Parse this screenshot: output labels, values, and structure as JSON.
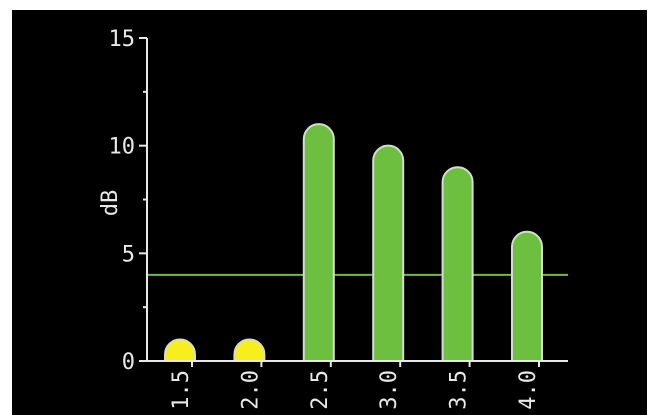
{
  "chart_data": {
    "type": "bar",
    "title": "",
    "xlabel": "",
    "ylabel": "dB",
    "categories": [
      "1.5",
      "2.0",
      "2.5",
      "3.0",
      "3.5",
      "4.0"
    ],
    "values": [
      1,
      1,
      11,
      10,
      9,
      6
    ],
    "ylim": [
      0,
      15
    ],
    "y_ticks": [
      0,
      5,
      10,
      15
    ],
    "y_tick_labels": [
      "0",
      "5",
      "10",
      "15"
    ],
    "threshold": 4,
    "grid": false,
    "legend": "none",
    "colors": {
      "background": "#000000",
      "axis": "#e8e8e8",
      "bar": "#6cbf3f",
      "bar_highlight": "#f7ee1e",
      "bar_outline": "#d8d8d8",
      "threshold_line": "#6cbf3f"
    }
  }
}
